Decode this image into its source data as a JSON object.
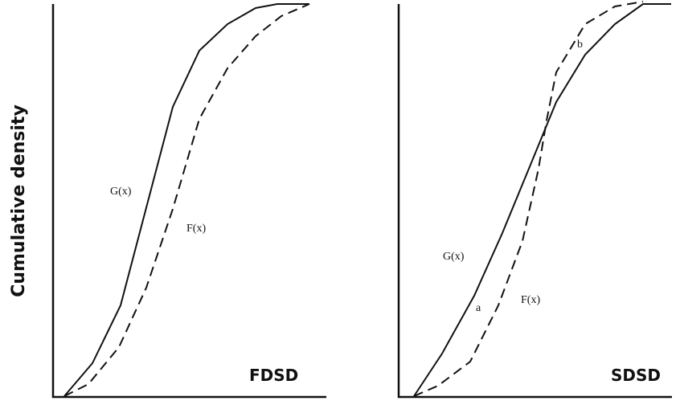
{
  "y_axis_label": "Cumulative density",
  "panels": [
    {
      "title": "FDSD",
      "labels": [
        "G(x)",
        "F(x)"
      ]
    },
    {
      "title": "SDSD",
      "labels": [
        "G(x)",
        "F(x)",
        "a",
        "b"
      ]
    }
  ]
}
